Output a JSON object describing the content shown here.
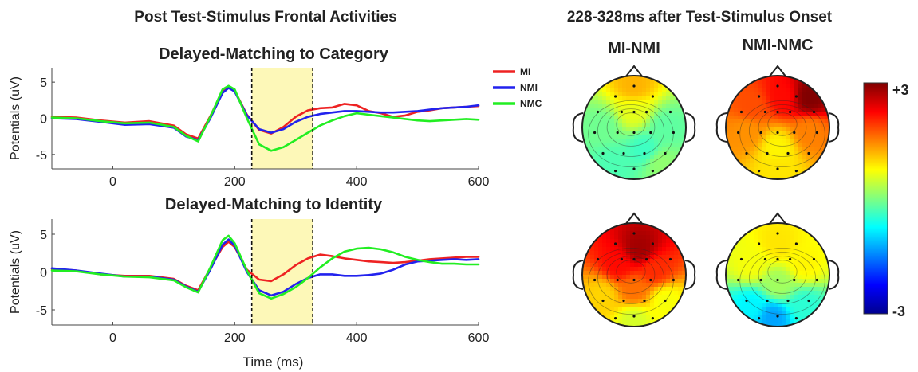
{
  "figure": {
    "left_title": "Post Test-Stimulus  Frontal  Activities",
    "right_title": "228-328ms after Test-Stimulus  Onset",
    "colorbar": {
      "max_label": "+3",
      "min_label": "-3",
      "range": [
        -3,
        3
      ],
      "colormap": [
        "#00008f",
        "#0000ff",
        "#0080ff",
        "#00ffff",
        "#80ff80",
        "#ffff00",
        "#ff8000",
        "#ff0000",
        "#800000"
      ]
    }
  },
  "chart_data": [
    {
      "type": "line",
      "title": "Delayed-Matching to Category",
      "xlabel": "",
      "ylabel": "Potentials (uV)",
      "xlim": [
        -100,
        600
      ],
      "ylim": [
        -7,
        7
      ],
      "xticks": [
        0,
        200,
        400,
        600
      ],
      "yticks": [
        5,
        0,
        -5
      ],
      "highlight_window": [
        228,
        328
      ],
      "highlight_color": "#fdf8b8",
      "legend_position": "right",
      "x": [
        -100,
        -60,
        -20,
        20,
        60,
        100,
        120,
        140,
        160,
        180,
        190,
        200,
        220,
        240,
        260,
        280,
        300,
        320,
        340,
        360,
        380,
        400,
        420,
        440,
        460,
        480,
        500,
        520,
        540,
        560,
        580,
        600
      ],
      "series": [
        {
          "name": "MI",
          "color": "#ee2222",
          "values": [
            0.2,
            0.1,
            -0.3,
            -0.6,
            -0.4,
            -1.0,
            -2.2,
            -2.8,
            0.3,
            3.8,
            4.3,
            3.8,
            0.5,
            -1.6,
            -2.1,
            -1.2,
            0.2,
            1.1,
            1.4,
            1.5,
            2.0,
            1.8,
            1.0,
            0.7,
            0.2,
            0.4,
            0.9,
            1.1,
            1.4,
            1.5,
            1.6,
            1.7
          ]
        },
        {
          "name": "NMI",
          "color": "#2222ee",
          "values": [
            0.0,
            -0.1,
            -0.5,
            -0.9,
            -0.8,
            -1.3,
            -2.5,
            -3.0,
            0.0,
            3.5,
            4.2,
            3.7,
            0.4,
            -1.5,
            -2.0,
            -1.5,
            -0.5,
            0.2,
            0.6,
            0.8,
            1.0,
            1.0,
            0.9,
            0.8,
            0.8,
            0.9,
            1.0,
            1.2,
            1.4,
            1.5,
            1.6,
            1.8
          ]
        },
        {
          "name": "NMC",
          "color": "#22ee22",
          "values": [
            0.1,
            0.0,
            -0.4,
            -0.7,
            -0.6,
            -1.2,
            -2.4,
            -3.2,
            0.2,
            4.0,
            4.5,
            4.0,
            0.0,
            -3.6,
            -4.5,
            -4.0,
            -3.0,
            -2.0,
            -1.0,
            -0.3,
            0.3,
            0.7,
            0.5,
            0.3,
            0.1,
            -0.1,
            -0.3,
            -0.4,
            -0.3,
            -0.2,
            -0.1,
            -0.2
          ]
        }
      ]
    },
    {
      "type": "line",
      "title": "Delayed-Matching to Identity",
      "xlabel": "Time (ms)",
      "ylabel": "Potentials (uV)",
      "xlim": [
        -100,
        600
      ],
      "ylim": [
        -7,
        7
      ],
      "xticks": [
        0,
        200,
        400,
        600
      ],
      "yticks": [
        5,
        0,
        -5
      ],
      "highlight_window": [
        228,
        328
      ],
      "highlight_color": "#fdf8b8",
      "x": [
        -100,
        -60,
        -20,
        20,
        60,
        100,
        120,
        140,
        160,
        180,
        190,
        200,
        220,
        240,
        260,
        280,
        300,
        320,
        340,
        360,
        380,
        400,
        420,
        440,
        460,
        480,
        500,
        520,
        540,
        560,
        580,
        600
      ],
      "series": [
        {
          "name": "MI",
          "color": "#ee2222",
          "values": [
            0.4,
            0.2,
            -0.3,
            -0.5,
            -0.5,
            -0.9,
            -1.8,
            -2.4,
            0.5,
            3.3,
            4.0,
            3.3,
            0.3,
            -1.0,
            -1.2,
            -0.3,
            0.9,
            1.8,
            2.3,
            2.1,
            1.8,
            1.6,
            1.4,
            1.3,
            1.2,
            1.3,
            1.5,
            1.7,
            1.8,
            1.9,
            2.0,
            2.0
          ]
        },
        {
          "name": "NMI",
          "color": "#2222ee",
          "values": [
            0.5,
            0.2,
            -0.2,
            -0.6,
            -0.6,
            -1.0,
            -1.9,
            -2.6,
            0.3,
            3.6,
            4.3,
            3.5,
            0.0,
            -2.4,
            -3.1,
            -2.6,
            -1.6,
            -0.8,
            -0.3,
            -0.3,
            -0.5,
            -0.5,
            -0.4,
            -0.2,
            0.3,
            1.0,
            1.4,
            1.5,
            1.6,
            1.7,
            1.6,
            1.7
          ]
        },
        {
          "name": "NMC",
          "color": "#22ee22",
          "values": [
            0.2,
            0.1,
            -0.3,
            -0.6,
            -0.7,
            -1.1,
            -2.0,
            -2.7,
            0.6,
            4.2,
            4.8,
            3.8,
            0.2,
            -2.8,
            -3.5,
            -2.9,
            -2.0,
            -0.8,
            0.6,
            1.8,
            2.7,
            3.1,
            3.2,
            3.0,
            2.6,
            2.0,
            1.6,
            1.3,
            1.1,
            1.1,
            1.0,
            1.0
          ]
        }
      ]
    },
    {
      "type": "heatmap",
      "title": "MI-NMI",
      "description_values_scale": [
        -3,
        3
      ],
      "maps": [
        {
          "condition": "Delayed-Matching to Category",
          "hotspots": [
            {
              "x": 0.5,
              "y": 0.1,
              "v": 1.2
            },
            {
              "x": 0.5,
              "y": 0.35,
              "v": 0.6
            },
            {
              "x": 0.2,
              "y": 0.5,
              "v": -0.1
            },
            {
              "x": 0.8,
              "y": 0.5,
              "v": -0.2
            },
            {
              "x": 0.3,
              "y": 0.85,
              "v": -0.3
            },
            {
              "x": 0.75,
              "y": 0.85,
              "v": 0.1
            },
            {
              "x": 0.6,
              "y": 0.72,
              "v": -0.4
            }
          ],
          "base": 0.0
        },
        {
          "condition": "Delayed-Matching to Identity",
          "hotspots": [
            {
              "x": 0.55,
              "y": 0.25,
              "v": 2.8
            },
            {
              "x": 0.35,
              "y": 0.4,
              "v": 2.2
            },
            {
              "x": 0.7,
              "y": 0.45,
              "v": 2.0
            },
            {
              "x": 0.5,
              "y": 0.65,
              "v": 1.6
            },
            {
              "x": 0.2,
              "y": 0.7,
              "v": 1.0
            },
            {
              "x": 0.8,
              "y": 0.75,
              "v": 0.7
            },
            {
              "x": 0.5,
              "y": 0.92,
              "v": 0.5
            }
          ],
          "base": 1.2
        }
      ]
    },
    {
      "type": "heatmap",
      "title": "NMI-NMC",
      "description_values_scale": [
        -3,
        3
      ],
      "maps": [
        {
          "condition": "Delayed-Matching to Category",
          "hotspots": [
            {
              "x": 0.8,
              "y": 0.2,
              "v": 3.0
            },
            {
              "x": 0.55,
              "y": 0.2,
              "v": 2.2
            },
            {
              "x": 0.25,
              "y": 0.3,
              "v": 1.8
            },
            {
              "x": 0.2,
              "y": 0.55,
              "v": 1.4
            },
            {
              "x": 0.8,
              "y": 0.55,
              "v": 1.5
            },
            {
              "x": 0.5,
              "y": 0.7,
              "v": 0.8
            },
            {
              "x": 0.5,
              "y": 0.92,
              "v": 0.9
            }
          ],
          "base": 1.4
        },
        {
          "condition": "Delayed-Matching to Identity",
          "hotspots": [
            {
              "x": 0.5,
              "y": 0.2,
              "v": 0.9
            },
            {
              "x": 0.25,
              "y": 0.4,
              "v": 0.7
            },
            {
              "x": 0.75,
              "y": 0.4,
              "v": 0.8
            },
            {
              "x": 0.5,
              "y": 0.6,
              "v": 0.2
            },
            {
              "x": 0.25,
              "y": 0.8,
              "v": -0.8
            },
            {
              "x": 0.45,
              "y": 0.9,
              "v": -1.3
            },
            {
              "x": 0.75,
              "y": 0.8,
              "v": -0.5
            }
          ],
          "base": 0.3
        }
      ]
    }
  ]
}
